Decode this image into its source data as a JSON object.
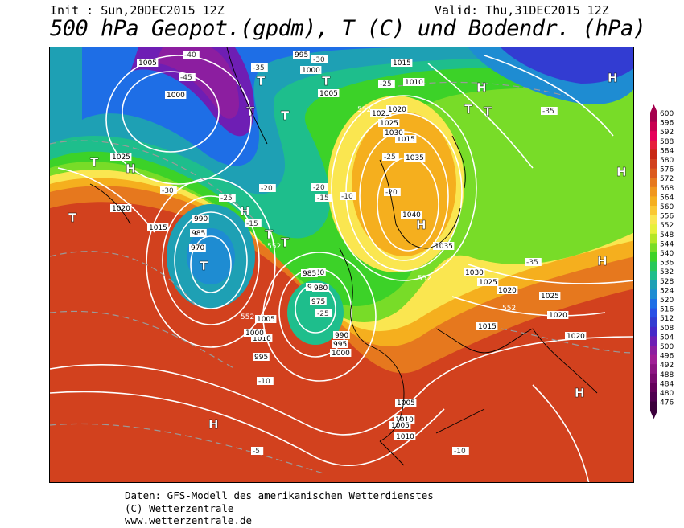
{
  "header": {
    "init": "Init : Sun,20DEC2015 12Z",
    "valid": "Valid: Thu,31DEC2015 12Z",
    "title": "500 hPa Geopot.(gpdm), T (C) und Bodendr. (hPa)"
  },
  "credits": {
    "line1": "Daten: GFS-Modell des amerikanischen Wetterdienstes",
    "line2": "(C) Wetterzentrale",
    "line3": "www.wetterzentrale.de"
  },
  "legend": {
    "values": [
      "600",
      "596",
      "592",
      "588",
      "584",
      "580",
      "576",
      "572",
      "568",
      "564",
      "560",
      "556",
      "552",
      "548",
      "544",
      "540",
      "536",
      "532",
      "528",
      "524",
      "520",
      "516",
      "512",
      "508",
      "504",
      "500",
      "496",
      "492",
      "488",
      "484",
      "480",
      "476"
    ],
    "colors": [
      "#a5004d",
      "#c80050",
      "#e6005a",
      "#e61e3c",
      "#c82814",
      "#d2411e",
      "#dc5a1e",
      "#e6781e",
      "#f0961e",
      "#f5af1e",
      "#fac832",
      "#fae650",
      "#e6f03c",
      "#b4e628",
      "#78dc28",
      "#3cd228",
      "#28c85a",
      "#1ebe8c",
      "#1ea0b4",
      "#1e8cd2",
      "#1e6ee6",
      "#2850e6",
      "#323cd2",
      "#4628c8",
      "#6e1eb4",
      "#8c1ea0",
      "#a01e96",
      "#8c1482",
      "#780a6e",
      "#64005a",
      "#500050",
      "#3c003c"
    ]
  },
  "isobar_labels": [
    "1005",
    "1000",
    "995",
    "1015",
    "1010",
    "1000",
    "1005",
    "1025",
    "1020",
    "1015",
    "1030",
    "1025",
    "1035",
    "1040",
    "1035",
    "1030",
    "1025",
    "1020",
    "1015",
    "1010",
    "1005",
    "1000",
    "995",
    "990",
    "985",
    "980",
    "975",
    "970",
    "1025",
    "1020",
    "1015",
    "1010",
    "1005",
    "1000",
    "995",
    "990",
    "985",
    "980",
    "975",
    "1010",
    "1005",
    "1020",
    "1025",
    "1020"
  ],
  "temp_labels": [
    "-45",
    "-40",
    "-35",
    "-30",
    "-25",
    "-20",
    "-15",
    "-10",
    "-25",
    "-20",
    "-35",
    "-30",
    "-25",
    "-20",
    "-15",
    "-10",
    "-5",
    "-10",
    "-35",
    "-25"
  ],
  "height_labels": [
    "552",
    "552",
    "552",
    "552",
    "552"
  ],
  "pressure_centers": [
    {
      "label": "T"
    },
    {
      "label": "T"
    },
    {
      "label": "T"
    },
    {
      "label": "T"
    },
    {
      "label": "T"
    },
    {
      "label": "T"
    },
    {
      "label": "T"
    },
    {
      "label": "H"
    },
    {
      "label": "H"
    },
    {
      "label": "H"
    },
    {
      "label": "H"
    },
    {
      "label": "H"
    },
    {
      "label": "H"
    },
    {
      "label": "H"
    },
    {
      "label": "H"
    },
    {
      "label": "H"
    },
    {
      "label": "T"
    },
    {
      "label": "T"
    },
    {
      "label": "T"
    },
    {
      "label": "T"
    }
  ]
}
